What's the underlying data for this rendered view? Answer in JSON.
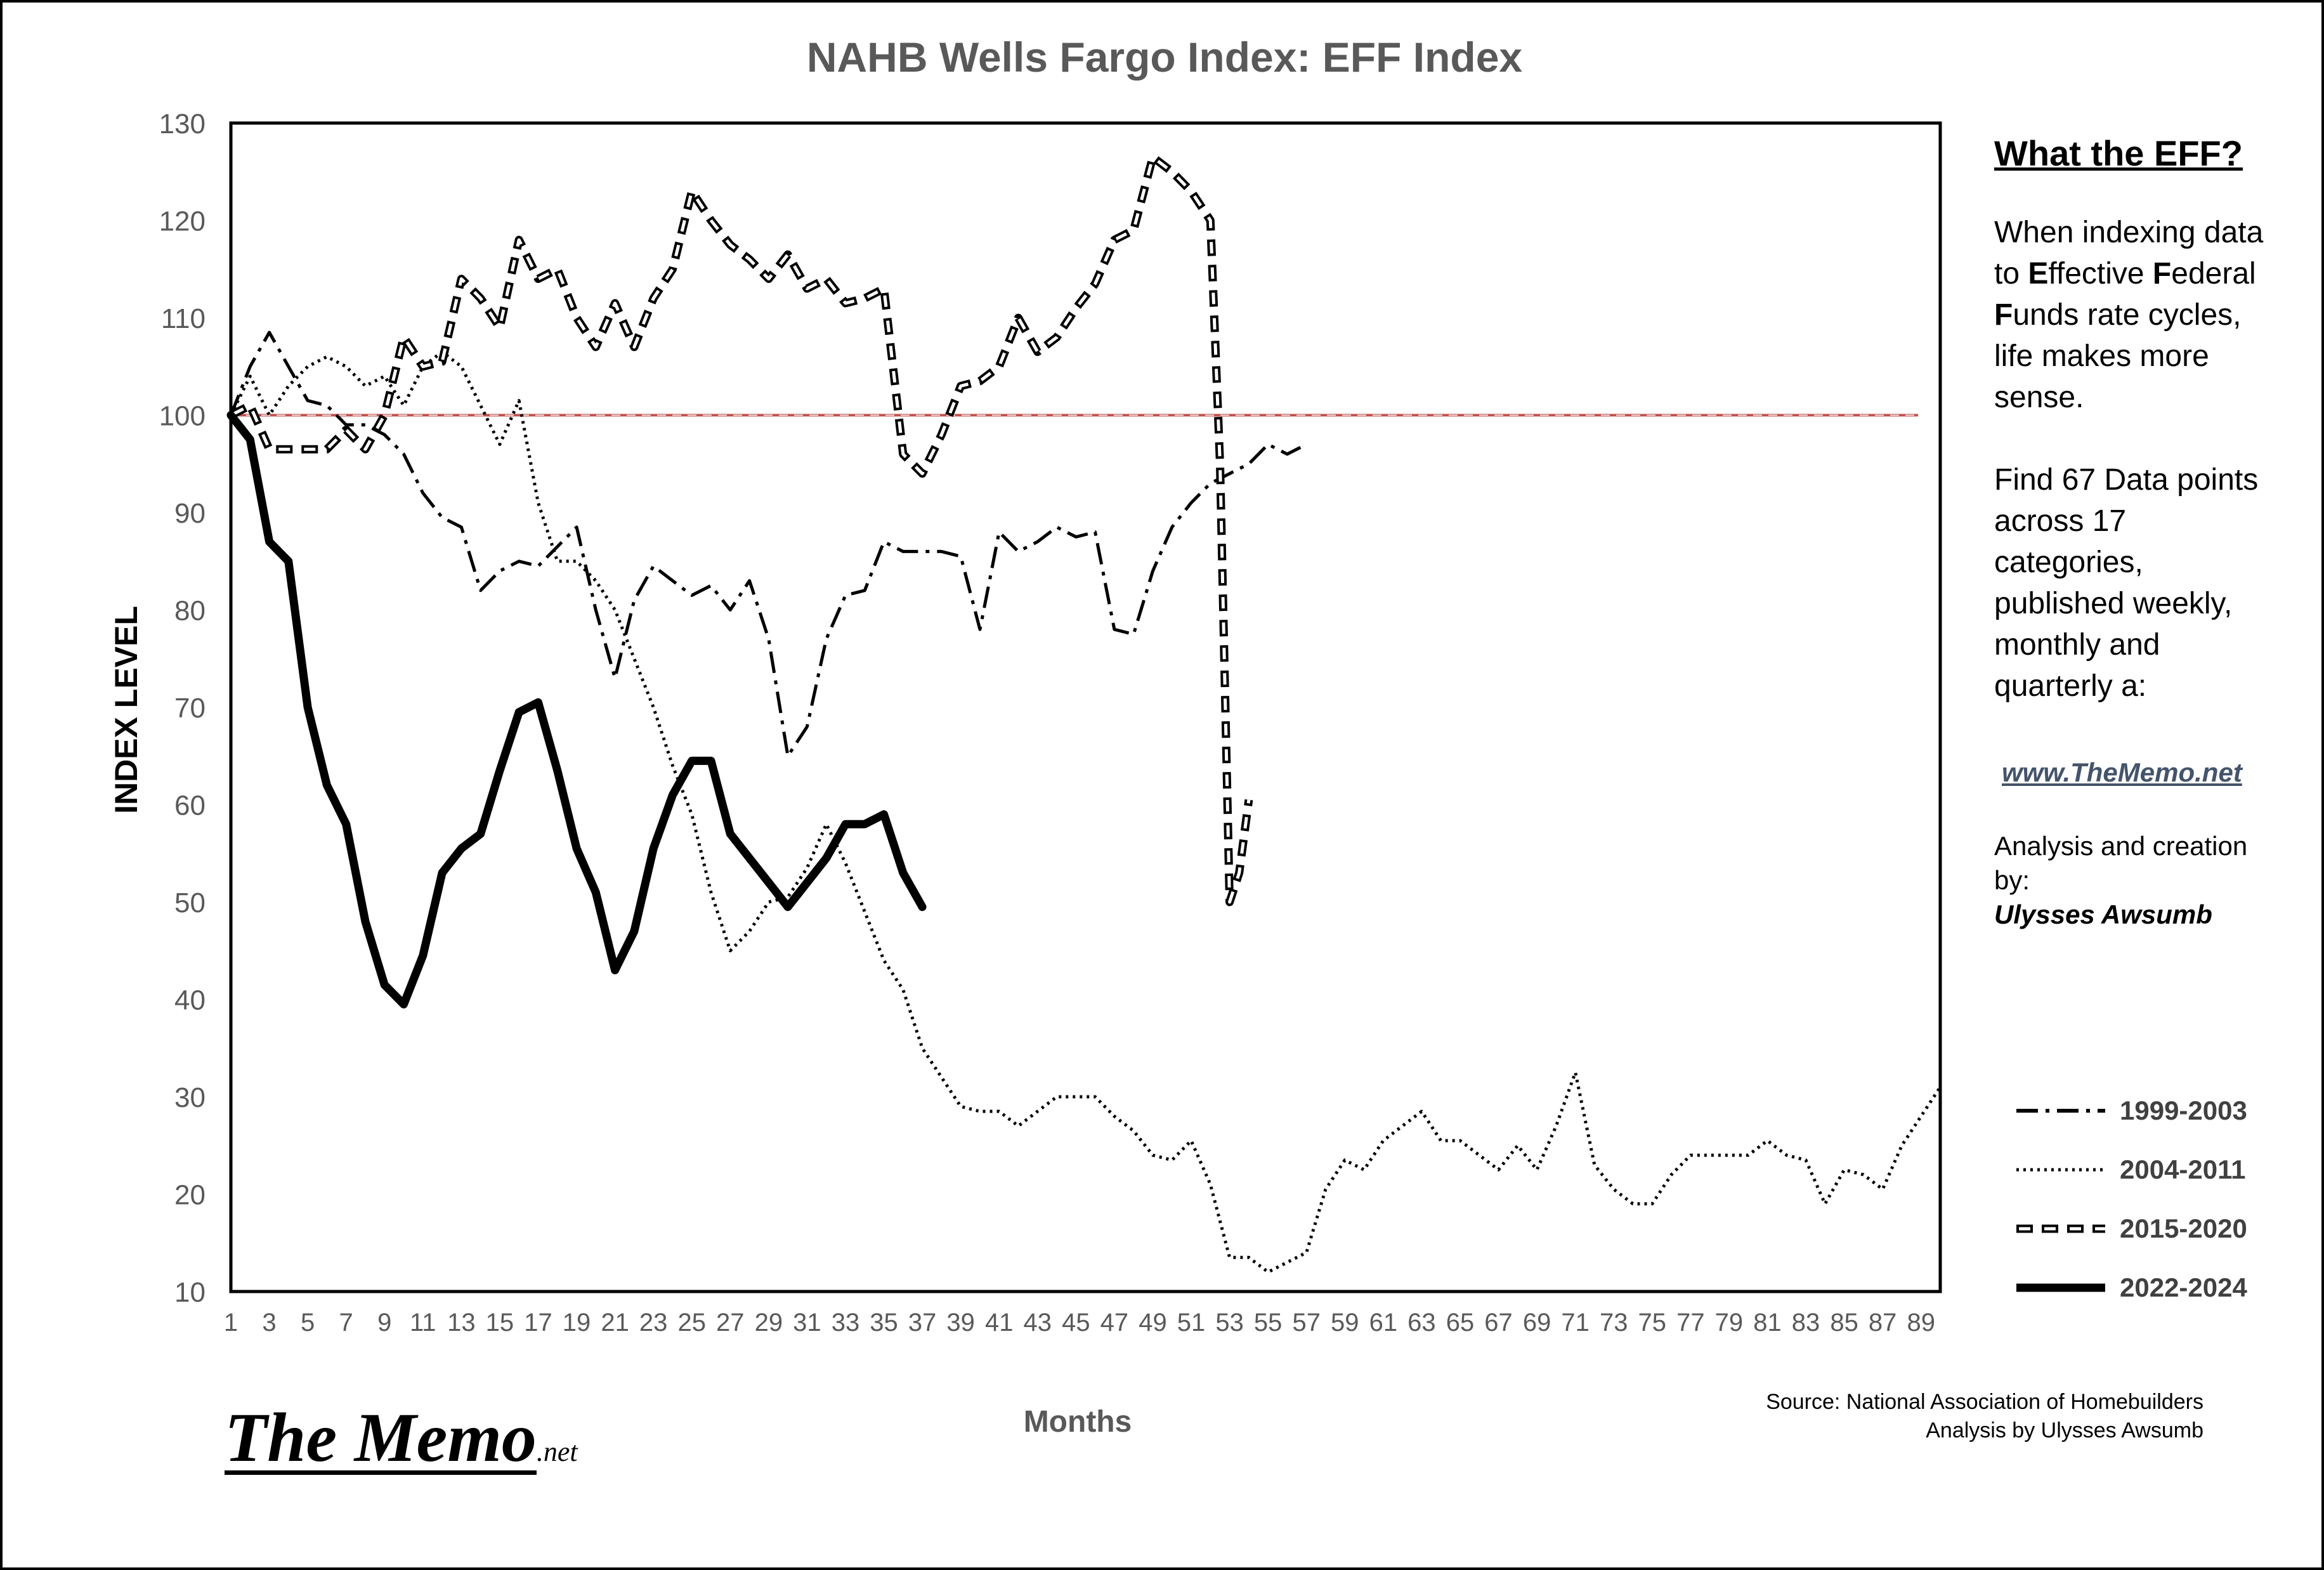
{
  "chart_data": {
    "type": "line",
    "title": "NAHB Wells Fargo Index:  EFF  Index",
    "xlabel": "Months",
    "ylabel": "INDEX LEVEL",
    "ylim": [
      10,
      130
    ],
    "xlim": [
      1,
      90
    ],
    "yticks": [
      10,
      20,
      30,
      40,
      50,
      60,
      70,
      80,
      90,
      100,
      110,
      120,
      130
    ],
    "xticks": [
      1,
      3,
      5,
      7,
      9,
      11,
      13,
      15,
      17,
      19,
      21,
      23,
      25,
      27,
      29,
      31,
      33,
      35,
      37,
      39,
      41,
      43,
      45,
      47,
      49,
      51,
      53,
      55,
      57,
      59,
      61,
      63,
      65,
      67,
      69,
      71,
      73,
      75,
      77,
      79,
      81,
      83,
      85,
      87,
      89
    ],
    "grid": false,
    "legend": "right",
    "reference_line": 100,
    "series": [
      {
        "name": "1999-2003",
        "style": "dash-dot",
        "x": [
          1,
          2,
          3,
          4,
          5,
          6,
          7,
          8,
          9,
          10,
          11,
          12,
          13,
          14,
          15,
          16,
          17,
          18,
          19,
          20,
          21,
          22,
          23,
          24,
          25,
          26,
          27,
          28,
          29,
          30,
          31,
          32,
          33,
          34,
          35,
          36,
          37,
          38,
          39,
          40,
          41,
          42,
          43,
          44,
          45,
          46,
          47,
          48,
          49,
          50,
          51,
          52,
          53,
          54,
          55,
          56,
          57
        ],
        "values": [
          100,
          105,
          108.5,
          105,
          101.5,
          101,
          99,
          99,
          98,
          96,
          92,
          89.5,
          88.5,
          82,
          84,
          85,
          84.5,
          86.5,
          88.5,
          80,
          73,
          81,
          84.5,
          83,
          81.5,
          82.5,
          80,
          83,
          77,
          65,
          68,
          77,
          81.5,
          82,
          87,
          86,
          86,
          86,
          85.5,
          78,
          88,
          86,
          87,
          88.5,
          87.5,
          88,
          78,
          77.5,
          84,
          88.5,
          91,
          93,
          94,
          95,
          97,
          96,
          97
        ]
      },
      {
        "name": "2004-2011",
        "style": "dotted",
        "x": [
          1,
          2,
          3,
          4,
          5,
          6,
          7,
          8,
          9,
          10,
          11,
          12,
          13,
          14,
          15,
          16,
          17,
          18,
          19,
          20,
          21,
          22,
          23,
          24,
          25,
          26,
          27,
          28,
          29,
          30,
          31,
          32,
          33,
          34,
          35,
          36,
          37,
          38,
          39,
          40,
          41,
          42,
          43,
          44,
          45,
          46,
          47,
          48,
          49,
          50,
          51,
          52,
          53,
          54,
          55,
          56,
          57,
          58,
          59,
          60,
          61,
          62,
          63,
          64,
          65,
          66,
          67,
          68,
          69,
          70,
          71,
          72,
          73,
          74,
          75,
          76,
          77,
          78,
          79,
          80,
          81,
          82,
          83,
          84,
          85,
          86,
          87,
          88,
          89,
          90
        ],
        "values": [
          100,
          104,
          100,
          103,
          105,
          106,
          105,
          103,
          104,
          101,
          105,
          106.5,
          105,
          101,
          97,
          101.5,
          91,
          85,
          85,
          83,
          80,
          75,
          70,
          64,
          59,
          51,
          45,
          47,
          50,
          50.5,
          53.5,
          58,
          54,
          49,
          44,
          41,
          35,
          32,
          29,
          28.5,
          28.5,
          27,
          28.5,
          30,
          30,
          30,
          28,
          26.5,
          24,
          23.5,
          25.5,
          21,
          13.5,
          13.5,
          12,
          13,
          14,
          20.5,
          23.5,
          22.5,
          25.5,
          27,
          28.5,
          25.5,
          25.5,
          24,
          22.5,
          25,
          22.5,
          27,
          32.5,
          23,
          20.5,
          19,
          19,
          22,
          24,
          24,
          24,
          24,
          25.5,
          24,
          23.5,
          19,
          22.5,
          22,
          20.5,
          25,
          28,
          31
        ]
      },
      {
        "name": "2015-2020",
        "style": "double-dash",
        "x": [
          1,
          2,
          3,
          4,
          5,
          6,
          7,
          8,
          9,
          10,
          11,
          12,
          13,
          14,
          15,
          16,
          17,
          18,
          19,
          20,
          21,
          22,
          23,
          24,
          25,
          26,
          27,
          28,
          29,
          30,
          31,
          32,
          33,
          34,
          35,
          36,
          37,
          38,
          39,
          40,
          41,
          42,
          43,
          44,
          45,
          46,
          47,
          48,
          49,
          50,
          51,
          52,
          52.5,
          53,
          53.5,
          54
        ],
        "values": [
          100,
          101,
          96.5,
          96.5,
          96.5,
          96.5,
          98.5,
          96.5,
          100,
          108,
          105,
          105.5,
          114,
          112,
          109,
          118,
          114,
          115,
          110,
          107,
          111.5,
          107,
          112,
          115,
          123,
          120,
          117.5,
          116,
          114,
          116.5,
          113,
          114,
          111.5,
          112,
          113,
          96,
          94,
          98,
          103,
          103.5,
          105,
          110,
          106.5,
          108,
          111,
          113.5,
          118,
          119,
          126.5,
          125,
          123,
          120,
          95,
          50,
          53,
          60.5
        ]
      },
      {
        "name": "2022-2024",
        "style": "solid-thick",
        "x": [
          1,
          2,
          3,
          4,
          5,
          6,
          7,
          8,
          9,
          10,
          11,
          12,
          13,
          14,
          15,
          16,
          17,
          18,
          19,
          20,
          21,
          22,
          23,
          24,
          25,
          26,
          27,
          28,
          29,
          30,
          31,
          32,
          33,
          34,
          35,
          36,
          37
        ],
        "values": [
          100,
          97.5,
          87,
          85,
          70,
          62,
          58,
          48,
          41.5,
          39.5,
          44.5,
          53,
          55.5,
          57,
          63.5,
          69.5,
          70.5,
          63.5,
          55.5,
          51,
          43,
          47,
          55.5,
          61,
          64.5,
          64.5,
          57,
          54.5,
          52,
          49.5,
          52,
          54.5,
          58,
          58,
          59,
          53,
          49.5
        ]
      }
    ]
  },
  "sidebar": {
    "heading": "What the EFF?",
    "desc_parts": [
      "When indexing data to ",
      "E",
      "ffective ",
      "F",
      "ederal ",
      "F",
      "unds rate cycles, life makes more sense."
    ],
    "desc2": "Find 67 Data points across 17 categories, published weekly, monthly and quarterly a:",
    "link": "www.TheMemo.net",
    "credit": "Analysis and creation by:",
    "author": "Ulysses Awsumb"
  },
  "source": {
    "line1": "Source: National Association of Homebuilders",
    "line2": "Analysis by Ulysses Awsumb"
  },
  "logo": {
    "main": "The Memo",
    "sub": ".net"
  },
  "colors": {
    "reference_line": "#c0504d",
    "title": "#595959",
    "axis_labels": "#595959",
    "series": "#000000",
    "link": "#44546a"
  }
}
